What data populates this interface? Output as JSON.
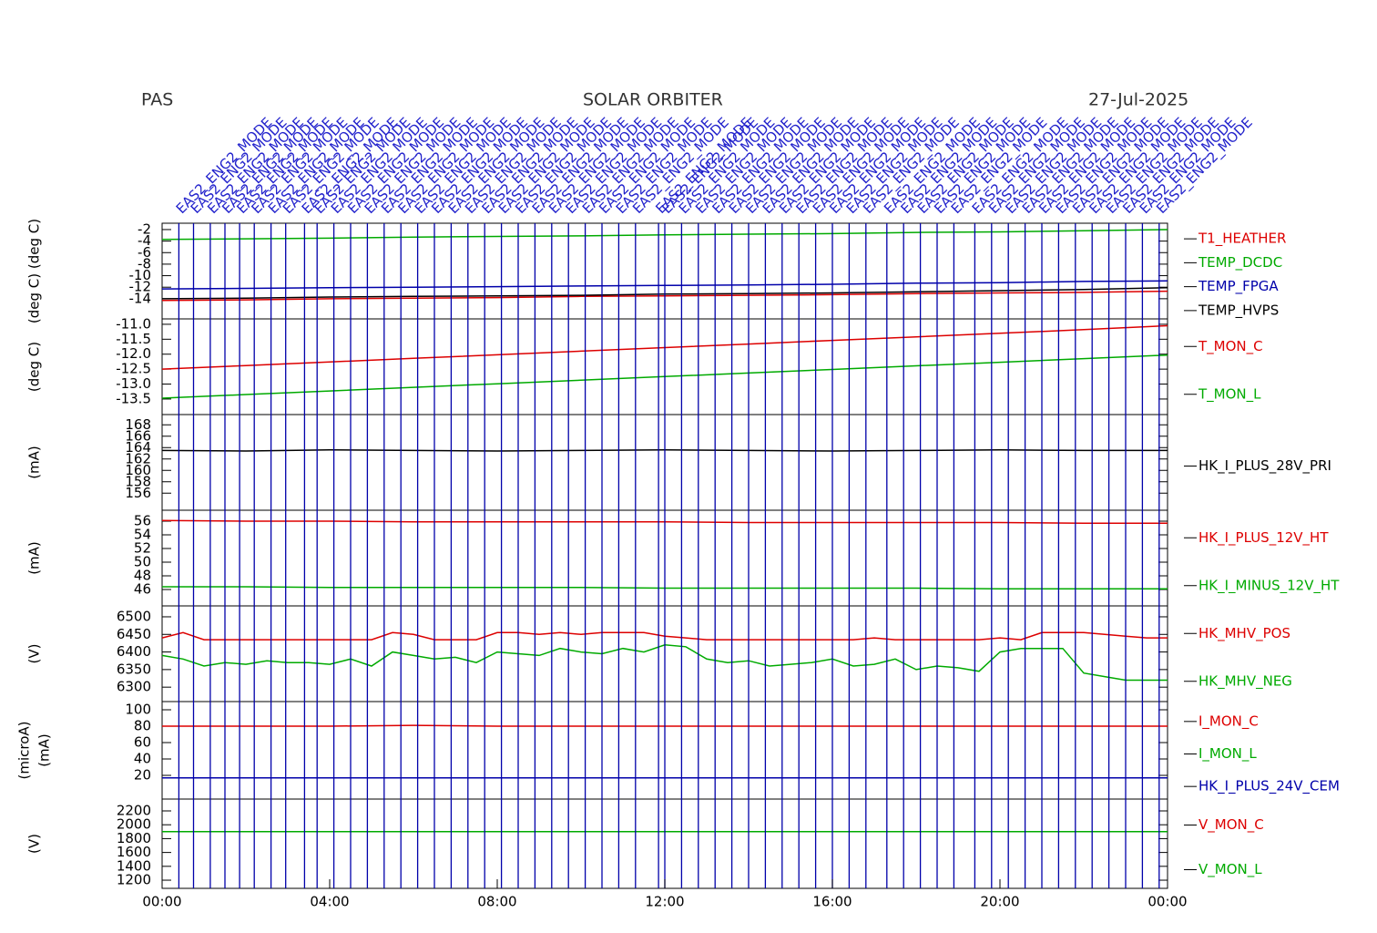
{
  "header": {
    "instrument": "PAS",
    "mission": "SOLAR ORBITER",
    "date": "27-Jul-2025"
  },
  "events": [
    {
      "x": 0.4,
      "label": "EAS2_ENG2_MODE"
    },
    {
      "x": 0.75,
      "label": "EAS2_ENG2_MODE"
    },
    {
      "x": 1.15,
      "label": "EAS2_ENG2_MODE"
    },
    {
      "x": 1.5,
      "label": "EAS2_ENG2_MODE"
    },
    {
      "x": 1.85,
      "label": "EAS2_ENG2_MODE"
    },
    {
      "x": 2.2,
      "label": "EAS2_ENG2_MODE"
    },
    {
      "x": 2.6,
      "label": "EAS2_ENG2_MODE"
    },
    {
      "x": 2.95,
      "label": "EAS2_ENG2_MODE"
    },
    {
      "x": 3.4,
      "label": "EAS2_ENG2_MODE"
    },
    {
      "x": 3.7,
      "label": "EAS2_ENG2_MODE"
    },
    {
      "x": 4.1,
      "label": "EAS2_ENG2_MODE"
    },
    {
      "x": 4.5,
      "label": "EAS2_ENG2_MODE"
    },
    {
      "x": 4.9,
      "label": "EAS2_ENG2_MODE"
    },
    {
      "x": 5.3,
      "label": "EAS2_ENG2_MODE"
    },
    {
      "x": 5.7,
      "label": "EAS2_ENG2_MODE"
    },
    {
      "x": 6.1,
      "label": "EAS2_ENG2_MODE"
    },
    {
      "x": 6.5,
      "label": "EAS2_ENG2_MODE"
    },
    {
      "x": 6.9,
      "label": "EAS2_ENG2_MODE"
    },
    {
      "x": 7.3,
      "label": "EAS2_ENG2_MODE"
    },
    {
      "x": 7.7,
      "label": "EAS2_ENG2_MODE"
    },
    {
      "x": 8.1,
      "label": "EAS2_ENG2_MODE"
    },
    {
      "x": 8.5,
      "label": "EAS2_ENG2_MODE"
    },
    {
      "x": 8.9,
      "label": "EAS2_ENG2_MODE"
    },
    {
      "x": 9.3,
      "label": "EAS2_ENG2_MODE"
    },
    {
      "x": 9.7,
      "label": "EAS2_ENG2_MODE"
    },
    {
      "x": 10.1,
      "label": "EAS2_ENG2_MODE"
    },
    {
      "x": 10.5,
      "label": "EAS2_ENG2_MODE"
    },
    {
      "x": 10.9,
      "label": "EAS2_ENG2_MODE"
    },
    {
      "x": 11.3,
      "label": "EAS2_ENG2_MODE"
    },
    {
      "x": 11.85,
      "label": "EAS2_ENG2_MODE"
    },
    {
      "x": 12.0,
      "label": "EAS2_ENG2_MODE"
    },
    {
      "x": 12.4,
      "label": "EAS2_ENG2_MODE"
    },
    {
      "x": 12.8,
      "label": "EAS2_ENG2_MODE"
    },
    {
      "x": 13.2,
      "label": "EAS2_ENG2_MODE"
    },
    {
      "x": 13.6,
      "label": "EAS2_ENG2_MODE"
    },
    {
      "x": 14.0,
      "label": "EAS2_ENG2_MODE"
    },
    {
      "x": 14.4,
      "label": "EAS2_ENG2_MODE"
    },
    {
      "x": 14.8,
      "label": "EAS2_ENG2_MODE"
    },
    {
      "x": 15.2,
      "label": "EAS2_ENG2_MODE"
    },
    {
      "x": 15.6,
      "label": "EAS2_ENG2_MODE"
    },
    {
      "x": 16.0,
      "label": "EAS2_ENG2_MODE"
    },
    {
      "x": 16.4,
      "label": "EAS2_ENG2_MODE"
    },
    {
      "x": 16.8,
      "label": "EAS2_ENG2_MODE"
    },
    {
      "x": 17.3,
      "label": "EAS2_ENG2_MODE"
    },
    {
      "x": 17.7,
      "label": "EAS2_ENG2_MODE"
    },
    {
      "x": 18.1,
      "label": "EAS2_ENG2_MODE"
    },
    {
      "x": 18.5,
      "label": "EAS2_ENG2_MODE"
    },
    {
      "x": 18.9,
      "label": "EAS2_ENG2_MODE"
    },
    {
      "x": 19.4,
      "label": "EAS2_ENG2_MODE"
    },
    {
      "x": 19.8,
      "label": "EAS2_ENG2_MODE"
    },
    {
      "x": 20.2,
      "label": "EAS2_ENG2_MODE"
    },
    {
      "x": 20.6,
      "label": "EAS2_ENG2_MODE"
    },
    {
      "x": 21.0,
      "label": "EAS2_ENG2_MODE"
    },
    {
      "x": 21.4,
      "label": "EAS2_ENG2_MODE"
    },
    {
      "x": 21.8,
      "label": "EAS2_ENG2_MODE"
    },
    {
      "x": 22.2,
      "label": "EAS2_ENG2_MODE"
    },
    {
      "x": 22.6,
      "label": "EAS2_ENG2_MODE"
    },
    {
      "x": 23.0,
      "label": "EAS2_ENG2_MODE"
    },
    {
      "x": 23.4,
      "label": "EAS2_ENG2_MODE"
    },
    {
      "x": 23.8,
      "label": "EAS2_ENG2_MODE"
    }
  ],
  "xaxis": {
    "xlim": [
      0,
      24
    ],
    "xticks": [
      {
        "value": 0,
        "label": "00:00"
      },
      {
        "value": 4,
        "label": "04:00"
      },
      {
        "value": 8,
        "label": "08:00"
      },
      {
        "value": 12,
        "label": "12:00"
      },
      {
        "value": 16,
        "label": "16:00"
      },
      {
        "value": 20,
        "label": "20:00"
      },
      {
        "value": 24,
        "label": "00:00"
      }
    ]
  },
  "chart_data": [
    {
      "type": "line",
      "ylabel": [
        "(deg C) (deg C)"
      ],
      "ylim": [
        -17.5,
        -0.9
      ],
      "yticks": [
        -2,
        -4,
        -6,
        -8,
        -10,
        -12,
        -14
      ],
      "x": [
        0,
        2,
        4,
        6,
        8,
        10,
        12,
        14,
        16,
        18,
        20,
        22,
        24
      ],
      "series": [
        {
          "name": "T1_HEATHER",
          "color": "#dd0000",
          "values": [
            -14.3,
            -14.2,
            -14.0,
            -13.9,
            -13.8,
            -13.6,
            -13.5,
            -13.4,
            -13.3,
            -13.1,
            -13.0,
            -12.9,
            -12.7
          ]
        },
        {
          "name": "TEMP_DCDC",
          "color": "#00aa00",
          "values": [
            -3.7,
            -3.6,
            -3.5,
            -3.3,
            -3.2,
            -3.1,
            -2.9,
            -2.8,
            -2.7,
            -2.5,
            -2.4,
            -2.2,
            -2.0
          ]
        },
        {
          "name": "TEMP_FPGA",
          "color": "#0000aa",
          "values": [
            -12.3,
            -12.2,
            -12.1,
            -12.0,
            -11.9,
            -11.8,
            -11.7,
            -11.6,
            -11.5,
            -11.3,
            -11.2,
            -11.0,
            -10.9
          ]
        },
        {
          "name": "TEMP_HVPS",
          "color": "#000000",
          "values": [
            -14.0,
            -13.9,
            -13.7,
            -13.6,
            -13.5,
            -13.4,
            -13.2,
            -13.1,
            -13.0,
            -12.8,
            -12.6,
            -12.4,
            -12.1
          ]
        }
      ]
    },
    {
      "type": "line",
      "ylabel": [
        "(deg C)"
      ],
      "ylim": [
        -14.02,
        -10.82
      ],
      "yticks": [
        {
          "value": -11,
          "label": "-11.0"
        },
        {
          "value": -11.5,
          "label": "-11.5"
        },
        {
          "value": -12,
          "label": "-12.0"
        },
        {
          "value": -12.5,
          "label": "-12.5"
        },
        {
          "value": -13,
          "label": "-13.0"
        },
        {
          "value": -13.5,
          "label": "-13.5"
        }
      ],
      "x": [
        0,
        2,
        4,
        6,
        8,
        10,
        12,
        14,
        16,
        18,
        20,
        22,
        24
      ],
      "series": [
        {
          "name": "T_MON_C",
          "color": "#dd0000",
          "values": [
            -12.5,
            -12.38,
            -12.26,
            -12.14,
            -12.02,
            -11.9,
            -11.78,
            -11.66,
            -11.54,
            -11.42,
            -11.3,
            -11.18,
            -11.05
          ]
        },
        {
          "name": "T_MON_L",
          "color": "#00aa00",
          "values": [
            -13.47,
            -13.35,
            -13.23,
            -13.11,
            -12.99,
            -12.87,
            -12.75,
            -12.63,
            -12.51,
            -12.39,
            -12.27,
            -12.15,
            -12.03
          ]
        }
      ]
    },
    {
      "type": "line",
      "ylabel": [
        "(mA)"
      ],
      "ylim": [
        153,
        169.8
      ],
      "yticks": [
        168,
        166,
        164,
        162,
        160,
        158,
        156
      ],
      "x": [
        0,
        2,
        4,
        6,
        8,
        10,
        12,
        14,
        16,
        18,
        20,
        22,
        24
      ],
      "series": [
        {
          "name": "HK_I_PLUS_28V_PRI",
          "color": "#000000",
          "values": [
            163.5,
            163.4,
            163.6,
            163.5,
            163.4,
            163.5,
            163.6,
            163.5,
            163.4,
            163.5,
            163.6,
            163.5,
            163.5
          ]
        }
      ]
    },
    {
      "type": "line",
      "ylabel": [
        "(mA)"
      ],
      "ylim": [
        43.6,
        57.6
      ],
      "yticks": [
        56,
        54,
        52,
        50,
        48,
        46
      ],
      "x": [
        0,
        2,
        4,
        6,
        8,
        10,
        12,
        14,
        16,
        18,
        20,
        22,
        24
      ],
      "series": [
        {
          "name": "HK_I_PLUS_12V_HT",
          "color": "#dd0000",
          "values": [
            56.1,
            56.0,
            56.0,
            55.9,
            55.9,
            55.9,
            55.9,
            55.8,
            55.8,
            55.8,
            55.8,
            55.7,
            55.7
          ]
        },
        {
          "name": "HK_I_MINUS_12V_HT",
          "color": "#00aa00",
          "values": [
            46.4,
            46.4,
            46.3,
            46.3,
            46.3,
            46.3,
            46.2,
            46.2,
            46.2,
            46.2,
            46.1,
            46.1,
            46.1
          ]
        }
      ]
    },
    {
      "type": "line",
      "ylabel": [
        "(V)"
      ],
      "ylim": [
        6259,
        6531
      ],
      "yticks": [
        6500,
        6450,
        6400,
        6350,
        6300
      ],
      "x": [
        0,
        0.5,
        1,
        1.5,
        2,
        2.5,
        3,
        3.5,
        4,
        4.5,
        5,
        5.5,
        6,
        6.5,
        7,
        7.5,
        8,
        8.5,
        9,
        9.5,
        10,
        10.5,
        11,
        11.5,
        12,
        12.5,
        13,
        13.5,
        14,
        14.5,
        15,
        15.5,
        16,
        16.5,
        17,
        17.5,
        18,
        18.5,
        19,
        19.5,
        20,
        20.5,
        21,
        21.5,
        22,
        22.5,
        23,
        23.5,
        24
      ],
      "series": [
        {
          "name": "HK_MHV_POS",
          "color": "#dd0000",
          "values": [
            6440,
            6455,
            6435,
            6435,
            6435,
            6435,
            6435,
            6435,
            6435,
            6435,
            6435,
            6455,
            6450,
            6435,
            6435,
            6435,
            6455,
            6455,
            6450,
            6455,
            6450,
            6455,
            6455,
            6455,
            6445,
            6440,
            6435,
            6435,
            6435,
            6435,
            6435,
            6435,
            6435,
            6435,
            6440,
            6435,
            6435,
            6435,
            6435,
            6435,
            6440,
            6435,
            6455,
            6455,
            6455,
            6450,
            6445,
            6440,
            6440
          ]
        },
        {
          "name": "HK_MHV_NEG",
          "color": "#00aa00",
          "values": [
            6390,
            6380,
            6360,
            6370,
            6365,
            6375,
            6370,
            6370,
            6365,
            6380,
            6360,
            6400,
            6390,
            6380,
            6385,
            6370,
            6400,
            6395,
            6390,
            6410,
            6400,
            6395,
            6410,
            6400,
            6420,
            6415,
            6380,
            6370,
            6375,
            6360,
            6365,
            6370,
            6380,
            6360,
            6365,
            6380,
            6350,
            6360,
            6355,
            6345,
            6400,
            6410,
            6410,
            6410,
            6340,
            6330,
            6320,
            6320,
            6320
          ]
        }
      ]
    },
    {
      "type": "line",
      "ylabel": [
        "(microA)",
        "(mA)"
      ],
      "ylim": [
        -8.9,
        110
      ],
      "yticks": [
        100,
        80,
        60,
        40,
        20
      ],
      "x": [
        0,
        2,
        4,
        6,
        8,
        10,
        12,
        14,
        16,
        18,
        20,
        22,
        24
      ],
      "series": [
        {
          "name": "I_MON_C",
          "color": "#dd0000",
          "values": [
            80,
            80,
            80,
            81,
            80,
            80,
            80,
            80,
            80,
            80,
            80,
            80,
            80
          ]
        },
        {
          "name": "I_MON_L",
          "color": "#00aa00",
          "values": [
            null,
            null,
            null,
            null,
            null,
            null,
            null,
            null,
            null,
            null,
            null,
            null,
            null
          ]
        },
        {
          "name": "HK_I_PLUS_24V_CEM",
          "color": "#0000aa",
          "values": [
            17,
            17,
            17,
            17,
            17,
            17,
            17,
            17,
            17,
            17,
            17,
            17,
            17
          ]
        }
      ]
    },
    {
      "type": "line",
      "ylabel": [
        "(V)"
      ],
      "ylim": [
        1082,
        2371
      ],
      "yticks": [
        2200,
        2000,
        1800,
        1600,
        1400,
        1200
      ],
      "x": [
        0,
        2,
        4,
        6,
        8,
        10,
        12,
        14,
        16,
        18,
        20,
        22,
        24
      ],
      "series": [
        {
          "name": "V_MON_C",
          "color": "#dd0000",
          "values": [
            null,
            null,
            null,
            null,
            null,
            null,
            null,
            null,
            null,
            null,
            null,
            null,
            null
          ]
        },
        {
          "name": "V_MON_L",
          "color": "#00aa00",
          "values": [
            1900,
            1900,
            1900,
            1900,
            1900,
            1900,
            1900,
            1900,
            1900,
            1900,
            1900,
            1900,
            1900
          ]
        }
      ]
    }
  ]
}
